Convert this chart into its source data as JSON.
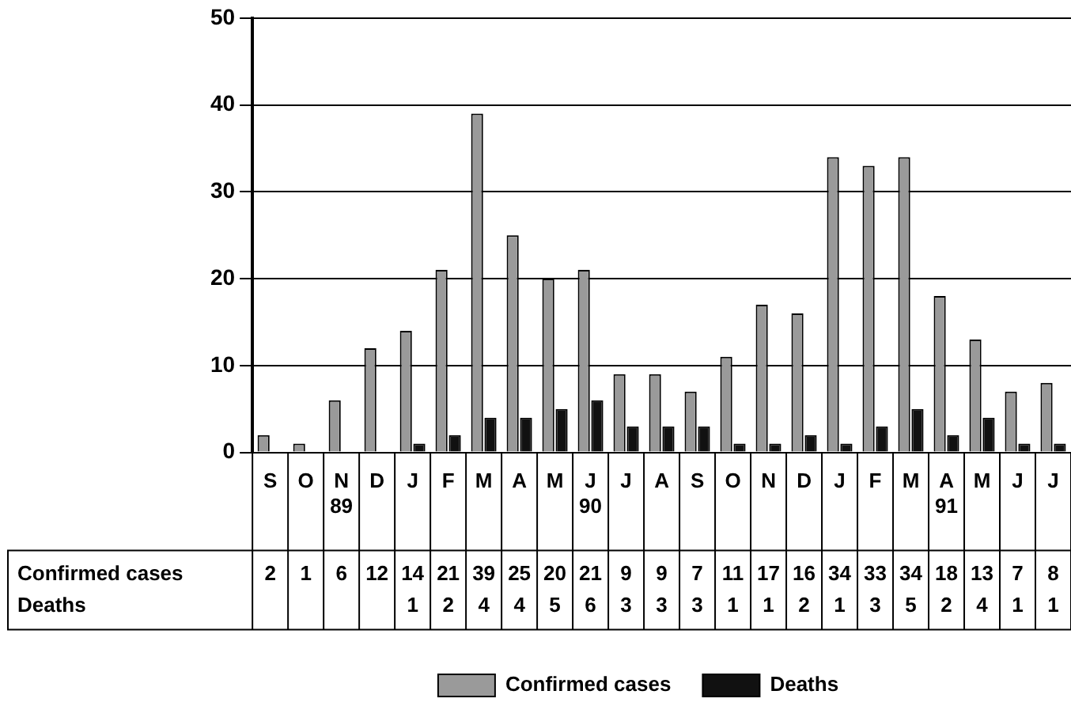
{
  "chart_data": {
    "type": "bar",
    "categories": [
      "S",
      "O",
      "N\n89",
      "D",
      "J",
      "F",
      "M",
      "A",
      "M",
      "J\n90",
      "J",
      "A",
      "S",
      "O",
      "N",
      "D",
      "J",
      "F",
      "M",
      "A\n91",
      "M",
      "J",
      "J"
    ],
    "series": [
      {
        "name": "Confirmed cases",
        "color": "#9a9a9a",
        "values": [
          2,
          1,
          6,
          12,
          14,
          21,
          39,
          25,
          20,
          21,
          9,
          9,
          7,
          11,
          17,
          16,
          34,
          33,
          34,
          18,
          13,
          7,
          8
        ]
      },
      {
        "name": "Deaths",
        "color": "#111111",
        "values": [
          null,
          null,
          null,
          null,
          1,
          2,
          4,
          4,
          5,
          6,
          3,
          3,
          3,
          1,
          1,
          2,
          1,
          3,
          5,
          2,
          4,
          1,
          1
        ]
      }
    ],
    "ylim": [
      0,
      50
    ],
    "yticks": [
      0,
      10,
      20,
      30,
      40,
      50
    ],
    "grid": "y",
    "legend": "bottom",
    "data_labels": true
  }
}
